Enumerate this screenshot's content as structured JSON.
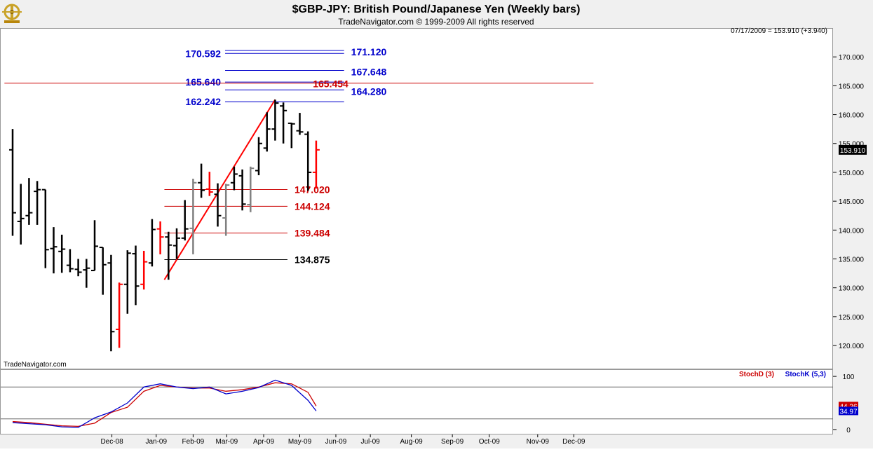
{
  "header": {
    "title": "$GBP-JPY:  British Pound/Japanese Yen  (Weekly bars)",
    "subtitle": "TradeNavigator.com © 1999-2009 All rights reserved",
    "last_quote": "07/17/2009 = 153.910 (+3.940)",
    "watermark": "TradeNavigator.com"
  },
  "chart_data": [
    {
      "type": "ohlc",
      "title": "$GBP-JPY:  British Pound/Japanese Yen  (Weekly bars)",
      "ylim": [
        116,
        175
      ],
      "y_ticks": [
        "120.000",
        "125.000",
        "130.000",
        "135.000",
        "140.000",
        "145.000",
        "150.000",
        "155.000",
        "160.000",
        "165.000",
        "170.000"
      ],
      "x_ticks": [
        {
          "label": "Dec-08",
          "x": 12.1
        },
        {
          "label": "Jan-09",
          "x": 17.5
        },
        {
          "label": "Feb-09",
          "x": 22.0
        },
        {
          "label": "Mar-09",
          "x": 26.1
        },
        {
          "label": "Apr-09",
          "x": 30.6
        },
        {
          "label": "May-09",
          "x": 35.0
        },
        {
          "label": "Jun-09",
          "x": 39.4
        },
        {
          "label": "Jul-09",
          "x": 43.6
        },
        {
          "label": "Aug-09",
          "x": 48.6
        },
        {
          "label": "Sep-09",
          "x": 53.6
        },
        {
          "label": "Oct-09",
          "x": 58.1
        },
        {
          "label": "Nov-09",
          "x": 64.0
        },
        {
          "label": "Dec-09",
          "x": 68.4
        }
      ],
      "last_price_label": "153.910",
      "bars": [
        {
          "x": 0,
          "o": 153.9,
          "h": 157.5,
          "l": 139.0,
          "c": 143.0,
          "color": "#000000"
        },
        {
          "x": 1,
          "o": 141.5,
          "h": 148.0,
          "l": 137.5,
          "c": 142.0,
          "color": "#000000"
        },
        {
          "x": 2,
          "o": 142.5,
          "h": 149.0,
          "l": 140.9,
          "c": 143.0,
          "color": "#000000"
        },
        {
          "x": 3,
          "o": 146.7,
          "h": 148.5,
          "l": 140.9,
          "c": 147.0,
          "color": "#000000"
        },
        {
          "x": 4,
          "o": 147.0,
          "h": 147.0,
          "l": 133.4,
          "c": 136.6,
          "color": "#000000"
        },
        {
          "x": 5,
          "o": 136.8,
          "h": 140.5,
          "l": 132.5,
          "c": 137.1,
          "color": "#000000"
        },
        {
          "x": 6,
          "o": 136.3,
          "h": 139.2,
          "l": 132.6,
          "c": 136.7,
          "color": "#000000"
        },
        {
          "x": 7,
          "o": 133.9,
          "h": 136.7,
          "l": 132.7,
          "c": 133.3,
          "color": "#000000"
        },
        {
          "x": 8,
          "o": 133.2,
          "h": 135.0,
          "l": 132.0,
          "c": 132.7,
          "color": "#000000"
        },
        {
          "x": 9,
          "o": 133.1,
          "h": 135.0,
          "l": 130.0,
          "c": 133.4,
          "color": "#000000"
        },
        {
          "x": 10,
          "o": 133.0,
          "h": 141.7,
          "l": 133.0,
          "c": 137.2,
          "color": "#000000"
        },
        {
          "x": 11,
          "o": 137.0,
          "h": 137.0,
          "l": 128.8,
          "c": 134.0,
          "color": "#000000"
        },
        {
          "x": 12,
          "o": 134.3,
          "h": 135.7,
          "l": 119.0,
          "c": 122.4,
          "color": "#000000"
        },
        {
          "x": 13,
          "o": 122.8,
          "h": 130.9,
          "l": 119.6,
          "c": 130.6,
          "color": "#ff0000"
        },
        {
          "x": 14,
          "o": 130.6,
          "h": 136.5,
          "l": 125.5,
          "c": 136.0,
          "color": "#000000"
        },
        {
          "x": 15,
          "o": 135.9,
          "h": 137.3,
          "l": 127.0,
          "c": 130.3,
          "color": "#000000"
        },
        {
          "x": 16,
          "o": 130.6,
          "h": 136.4,
          "l": 129.7,
          "c": 134.5,
          "color": "#ff0000"
        },
        {
          "x": 17,
          "o": 134.3,
          "h": 141.9,
          "l": 133.7,
          "c": 140.1,
          "color": "#000000"
        },
        {
          "x": 18,
          "o": 140.2,
          "h": 141.5,
          "l": 135.8,
          "c": 138.8,
          "color": "#ff0000"
        },
        {
          "x": 19,
          "o": 138.8,
          "h": 139.7,
          "l": 131.4,
          "c": 137.4,
          "color": "#000000"
        },
        {
          "x": 20,
          "o": 137.3,
          "h": 140.3,
          "l": 135.0,
          "c": 138.6,
          "color": "#000000"
        },
        {
          "x": 21,
          "o": 138.6,
          "h": 145.2,
          "l": 138.2,
          "c": 140.2,
          "color": "#000000"
        },
        {
          "x": 22,
          "o": 140.3,
          "h": 148.9,
          "l": 135.8,
          "c": 148.2,
          "color": "#808080"
        },
        {
          "x": 23,
          "o": 148.2,
          "h": 151.5,
          "l": 145.6,
          "c": 146.9,
          "color": "#000000"
        },
        {
          "x": 24,
          "o": 147.1,
          "h": 150.1,
          "l": 145.9,
          "c": 146.6,
          "color": "#ff0000"
        },
        {
          "x": 25,
          "o": 146.2,
          "h": 148.1,
          "l": 140.6,
          "c": 142.5,
          "color": "#000000"
        },
        {
          "x": 26,
          "o": 142.1,
          "h": 148.0,
          "l": 139.0,
          "c": 147.8,
          "color": "#808080"
        },
        {
          "x": 27,
          "o": 148.2,
          "h": 151.0,
          "l": 146.9,
          "c": 149.7,
          "color": "#000000"
        },
        {
          "x": 28,
          "o": 149.4,
          "h": 150.5,
          "l": 143.4,
          "c": 144.5,
          "color": "#000000"
        },
        {
          "x": 29,
          "o": 144.4,
          "h": 151.0,
          "l": 143.1,
          "c": 150.7,
          "color": "#808080"
        },
        {
          "x": 30,
          "o": 150.3,
          "h": 156.1,
          "l": 149.5,
          "c": 155.0,
          "color": "#000000"
        },
        {
          "x": 31,
          "o": 154.2,
          "h": 160.4,
          "l": 153.6,
          "c": 157.5,
          "color": "#000000"
        },
        {
          "x": 32,
          "o": 157.5,
          "h": 162.6,
          "l": 155.5,
          "c": 162.0,
          "color": "#000000"
        },
        {
          "x": 33,
          "o": 161.5,
          "h": 162.1,
          "l": 155.0,
          "c": 160.7,
          "color": "#000000"
        },
        {
          "x": 34,
          "o": 158.5,
          "h": 158.6,
          "l": 154.2,
          "c": 158.4,
          "color": "#000000"
        },
        {
          "x": 35,
          "o": 157.2,
          "h": 160.3,
          "l": 156.5,
          "c": 157.0,
          "color": "#000000"
        },
        {
          "x": 36,
          "o": 156.6,
          "h": 157.1,
          "l": 146.8,
          "c": 150.0,
          "color": "#000000"
        },
        {
          "x": 37,
          "o": 150.0,
          "h": 155.5,
          "l": 147.2,
          "c": 153.9,
          "color": "#ff0000"
        }
      ],
      "horizontal_levels": [
        {
          "value": 171.12,
          "label": "171.120",
          "color": "#0000cc",
          "x_start": 25.9,
          "x_end": 40.4
        },
        {
          "value": 170.592,
          "label": "170.592",
          "color": "#0000cc",
          "x_start": 25.9,
          "x_end": 40.4
        },
        {
          "value": 167.648,
          "label": "167.648",
          "color": "#0000cc",
          "x_start": 25.9,
          "x_end": 40.4
        },
        {
          "value": 165.64,
          "label": "165.640",
          "color": "#0000cc",
          "x_start": 25.9,
          "x_end": 40.4
        },
        {
          "value": 164.28,
          "label": "164.280",
          "color": "#0000cc",
          "x_start": 25.9,
          "x_end": 40.4
        },
        {
          "value": 162.242,
          "label": "162.242",
          "color": "#0000cc",
          "x_start": 25.9,
          "x_end": 40.4
        },
        {
          "value": 165.454,
          "label": "165.454",
          "color": "#cc0000",
          "x_start": -1,
          "x_end": 70.8
        },
        {
          "value": 147.02,
          "label": "147.020",
          "color": "#cc0000",
          "x_start": 18.5,
          "x_end": 33.5
        },
        {
          "value": 144.124,
          "label": "144.124",
          "color": "#cc0000",
          "x_start": 18.5,
          "x_end": 33.5
        },
        {
          "value": 139.484,
          "label": "139.484",
          "color": "#cc0000",
          "x_start": 18.5,
          "x_end": 33.5
        },
        {
          "value": 134.875,
          "label": "134.875",
          "color": "#000000",
          "x_start": 18.5,
          "x_end": 33.5
        }
      ],
      "trend_line": {
        "x1": 18.5,
        "y1": 131.4,
        "x2": 32.0,
        "y2": 162.6,
        "color": "#ff0000"
      }
    },
    {
      "type": "line",
      "title": "",
      "legend": [
        {
          "name": "StochD (3)",
          "color": "#cc0000"
        },
        {
          "name": "StochK (5,3)",
          "color": "#0000cc"
        }
      ],
      "ylim": [
        -8,
        112
      ],
      "y_ticks": [
        "0",
        "100"
      ],
      "reference_levels": [
        20,
        80
      ],
      "value_labels": [
        "44.26",
        "34.97"
      ],
      "series": [
        {
          "name": "StochD (3)",
          "color": "#cc0000",
          "x": [
            0,
            2,
            4,
            6,
            8,
            10,
            12,
            14,
            16,
            18,
            20,
            22,
            24,
            26,
            28,
            30,
            32,
            34,
            36,
            37
          ],
          "values": [
            15,
            13,
            10,
            7,
            6,
            12,
            32,
            42,
            72,
            83,
            80,
            78,
            78,
            72,
            75,
            80,
            88,
            86,
            70,
            44.26
          ]
        },
        {
          "name": "StochK (5,3)",
          "color": "#0000cc",
          "x": [
            0,
            2,
            4,
            6,
            8,
            10,
            12,
            14,
            16,
            18,
            20,
            22,
            24,
            26,
            28,
            30,
            32,
            34,
            36,
            37
          ],
          "values": [
            13,
            11,
            9,
            5,
            4,
            22,
            33,
            50,
            80,
            86,
            80,
            77,
            80,
            67,
            72,
            79,
            93,
            83,
            55,
            34.97
          ]
        }
      ]
    }
  ]
}
